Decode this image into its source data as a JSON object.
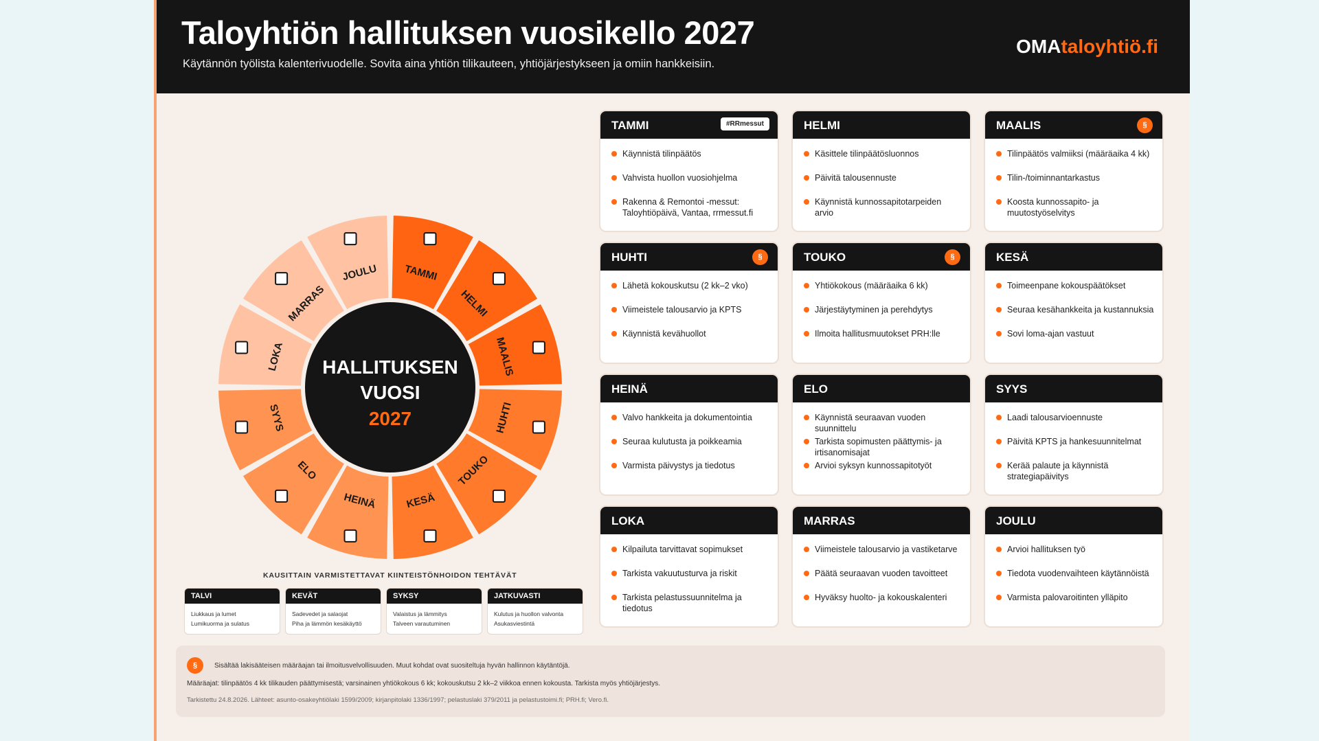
{
  "header": {
    "title": "Taloyhtiön hallituksen vuosikello 2027",
    "subtitle": "Käytännön työlista kalenterivuodelle. Sovita aina yhtiön tilikauteen, yhtiöjärjestykseen ja omiin hankkeisiin.",
    "logo_prefix": "OMA",
    "logo_suffix": "taloyhtiö.fi"
  },
  "wheel": {
    "center_line1": "HALLITUKSEN",
    "center_line2": "VUOSI",
    "center_year": "2027",
    "months": [
      {
        "label": "TAMMI",
        "color": "#ff6413"
      },
      {
        "label": "HELMI",
        "color": "#ff6413"
      },
      {
        "label": "MAALIS",
        "color": "#ff6413"
      },
      {
        "label": "HUHTI",
        "color": "#ff7a2b"
      },
      {
        "label": "TOUKO",
        "color": "#ff7a2b"
      },
      {
        "label": "KESÄ",
        "color": "#ff7a2b"
      },
      {
        "label": "HEINÄ",
        "color": "#ff9452"
      },
      {
        "label": "ELO",
        "color": "#ff9452"
      },
      {
        "label": "SYYS",
        "color": "#ff9452"
      },
      {
        "label": "LOKA",
        "color": "#ffc3a4"
      },
      {
        "label": "MARRAS",
        "color": "#ffc3a4"
      },
      {
        "label": "JOULU",
        "color": "#ffc3a4"
      }
    ]
  },
  "cards": [
    {
      "month": "TAMMI",
      "badge": "#RRmessut",
      "sec": "",
      "items": [
        "Käynnistä tilinpäätös",
        "Vahvista huollon vuosiohjelma",
        "Rakenna & Remontoi -messut: Taloyhtiöpäivä, Vantaa, rrmessut.fi"
      ]
    },
    {
      "month": "HELMI",
      "badge": "",
      "sec": "",
      "items": [
        "Käsittele tilinpäätösluonnos",
        "Päivitä talousennuste",
        "Käynnistä kunnossapitotarpeiden arvio"
      ]
    },
    {
      "month": "MAALIS",
      "badge": "",
      "sec": "§",
      "items": [
        "Tilinpäätös valmiiksi (määräaika 4 kk)",
        "Tilin-/toiminnantarkastus",
        "Koosta kunnossapito- ja muutostyöselvitys"
      ]
    },
    {
      "month": "HUHTI",
      "badge": "",
      "sec": "§",
      "items": [
        "Lähetä kokouskutsu (2 kk–2 vko)",
        "Viimeistele talousarvio ja KPTS",
        "Käynnistä kevähuollot"
      ]
    },
    {
      "month": "TOUKO",
      "badge": "",
      "sec": "§",
      "items": [
        "Yhtiökokous (määräaika 6 kk)",
        "Järjestäytyminen ja perehdytys",
        "Ilmoita hallitusmuutokset PRH:lle"
      ]
    },
    {
      "month": "KESÄ",
      "badge": "",
      "sec": "",
      "items": [
        "Toimeenpane kokouspäätökset",
        "Seuraa kesähankkeita ja kustannuksia",
        "Sovi loma-ajan vastuut"
      ]
    },
    {
      "month": "HEINÄ",
      "badge": "",
      "sec": "",
      "items": [
        "Valvo hankkeita ja dokumentointia",
        "Seuraa kulutusta ja poikkeamia",
        "Varmista päivystys ja tiedotus"
      ]
    },
    {
      "month": "ELO",
      "badge": "",
      "sec": "",
      "items": [
        "Käynnistä seuraavan vuoden suunnittelu",
        "Tarkista sopimusten päättymis- ja irtisanomisajat",
        "Arvioi syksyn kunnossapitotyöt"
      ]
    },
    {
      "month": "SYYS",
      "badge": "",
      "sec": "",
      "items": [
        "Laadi talousarvioennuste",
        "Päivitä KPTS ja hankesuunnitelmat",
        "Kerää palaute ja käynnistä strategiapäivitys"
      ]
    },
    {
      "month": "LOKA",
      "badge": "",
      "sec": "",
      "items": [
        "Kilpailuta tarvittavat sopimukset",
        "Tarkista vakuutusturva ja riskit",
        "Tarkista pelastussuunnitelma ja tiedotus"
      ]
    },
    {
      "month": "MARRAS",
      "badge": "",
      "sec": "",
      "items": [
        "Viimeistele talousarvio ja vastiketarve",
        "Päätä seuraavan vuoden tavoitteet",
        "Hyväksy huolto- ja kokouskalenteri"
      ]
    },
    {
      "month": "JOULU",
      "badge": "",
      "sec": "",
      "items": [
        "Arvioi hallituksen työ",
        "Tiedota vuodenvaihteen käytännöistä",
        "Varmista palovaroitinten ylläpito"
      ]
    }
  ],
  "seasons": {
    "title": "KAUSITTAIN VARMISTETTAVAT KIINTEISTÖNHOIDON TEHTÄVÄT",
    "items": [
      {
        "name": "TALVI",
        "line1": "Liukkaus ja lumet",
        "line2": "Lumikuorma ja sulatus"
      },
      {
        "name": "KEVÄT",
        "line1": "Sadevedet ja salaojat",
        "line2": "Piha ja lämmön kesäkäyttö"
      },
      {
        "name": "SYKSY",
        "line1": "Valaistus ja lämmitys",
        "line2": "Talveen varautuminen"
      },
      {
        "name": "JATKUVASTI",
        "line1": "Kulutus ja huollon valvonta",
        "line2": "Asukasviestintä"
      }
    ]
  },
  "footer": {
    "sec_symbol": "§",
    "note1": "Sisältää lakisääteisen määräajan tai ilmoitusvelvollisuuden. Muut kohdat ovat suositeltuja hyvän hallinnon käytäntöjä.",
    "note2": "Määräajat: tilinpäätös 4 kk tilikauden päättymisestä; varsinainen yhtiökokous 6 kk; kokouskutsu 2 kk–2 viikkoa ennen kokousta. Tarkista myös yhtiöjärjestys.",
    "note3": "Tarkistettu 24.8.2026. Lähteet: asunto-osakeyhtiölaki 1599/2009; kirjanpitolaki 1336/1997; pelastuslaki 379/2011 ja pelastustoimi.fi; PRH.fi; Vero.fi."
  }
}
